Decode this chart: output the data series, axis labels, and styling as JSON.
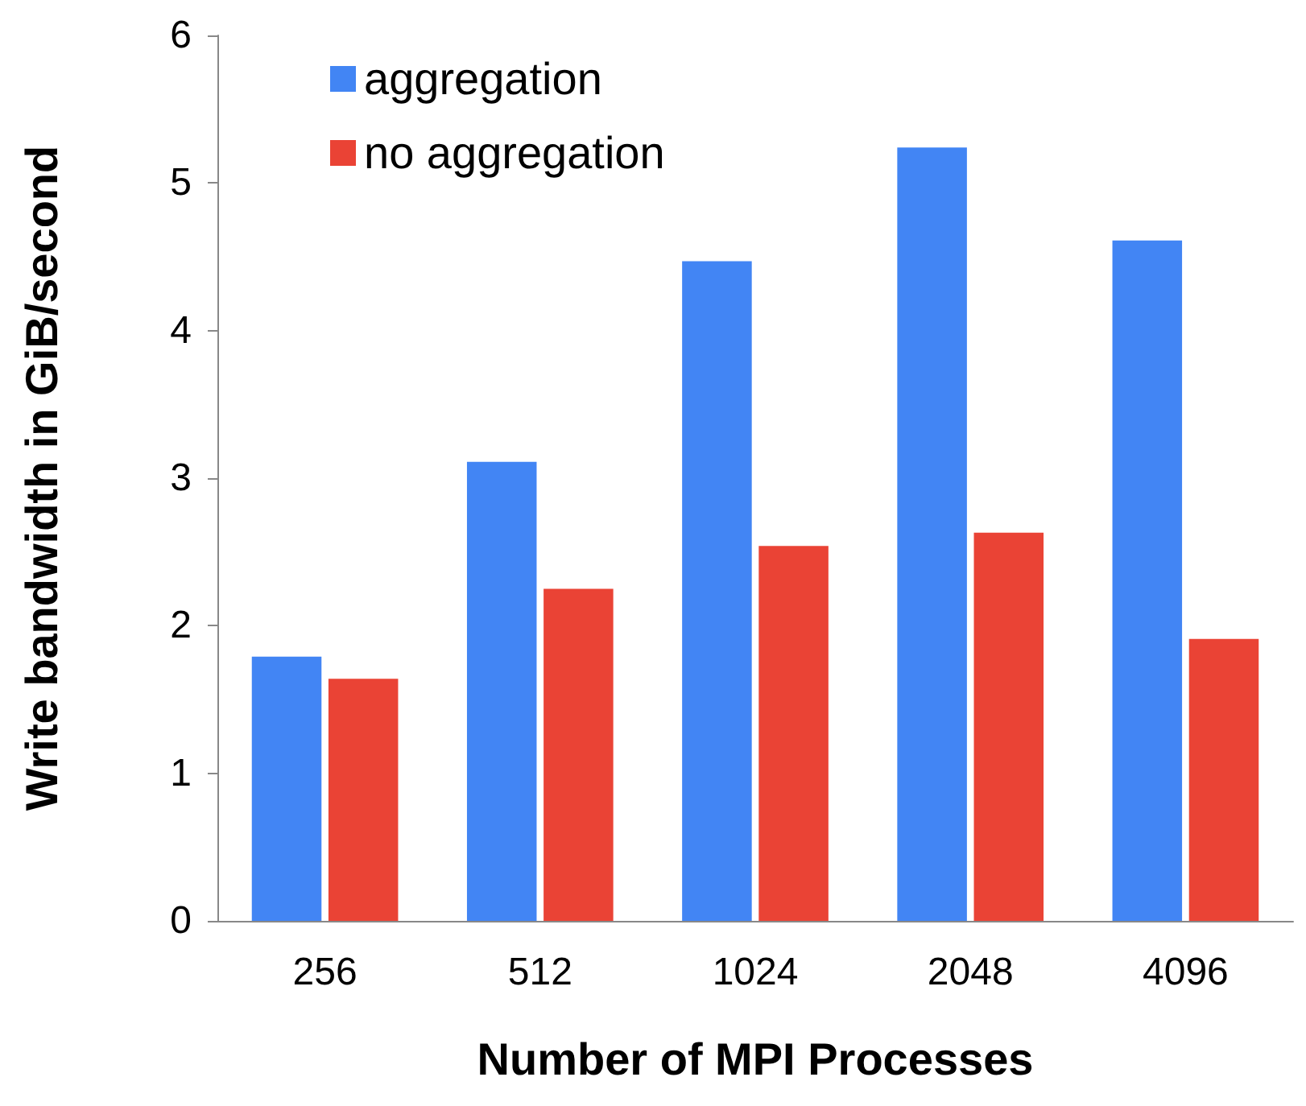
{
  "chart_data": {
    "type": "bar",
    "xlabel": "Number of MPI Processes",
    "ylabel": "Write bandwidth in GiB/second",
    "categories": [
      "256",
      "512",
      "1024",
      "2048",
      "4096"
    ],
    "series": [
      {
        "name": "aggregation",
        "color": "#4285f4",
        "values": [
          1.79,
          3.11,
          4.47,
          5.24,
          4.61
        ]
      },
      {
        "name": "no aggregation",
        "color": "#ea4335",
        "values": [
          1.64,
          2.25,
          2.54,
          2.63,
          1.91
        ]
      }
    ],
    "ylim": [
      0,
      6
    ],
    "yticks": [
      0,
      1,
      2,
      3,
      4,
      5,
      6
    ],
    "grid": false,
    "legend": "top left"
  }
}
